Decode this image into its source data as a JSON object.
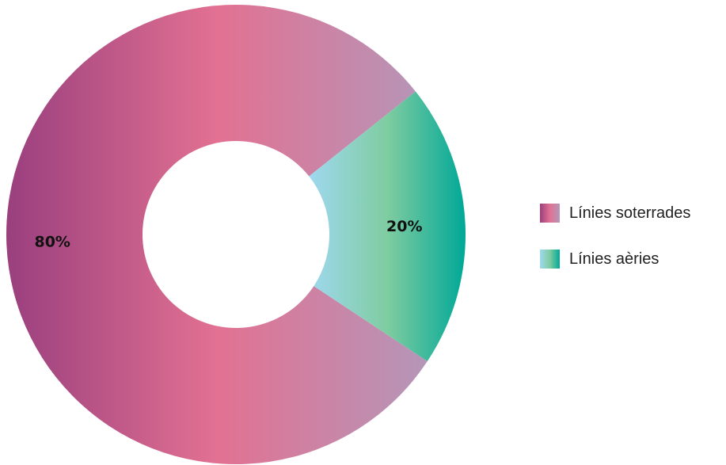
{
  "chart_data": {
    "type": "pie",
    "title": "",
    "categories": [
      "Línies soterrades",
      "Línies aèries"
    ],
    "values": [
      80,
      20
    ],
    "value_labels": [
      "80%",
      "20%"
    ],
    "unit": "%",
    "legend_position": "right",
    "series_colors": [
      {
        "from": "#9a3f7e",
        "mid": "#e27192",
        "to": "#b596b8"
      },
      {
        "from": "#9fd8ef",
        "mid": "#7fcca1",
        "to": "#00a897"
      }
    ]
  }
}
